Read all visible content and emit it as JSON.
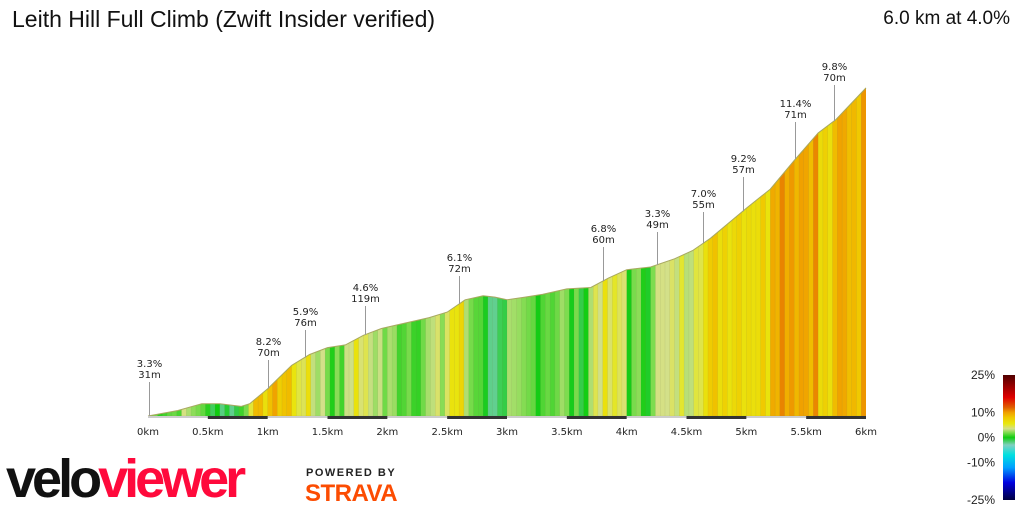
{
  "header": {
    "title": "Leith Hill Full Climb (Zwift Insider verified)",
    "summary": "6.0 km at 4.0%"
  },
  "branding": {
    "logo_part1": "velo",
    "logo_part2": "viewer",
    "powered_by": "POWERED BY",
    "strava": "STRAVA",
    "logo_colors": {
      "velo": "#111111",
      "viewer": "#ff0a3c",
      "strava": "#fc4c02"
    }
  },
  "chart_data": {
    "type": "area",
    "xlabel": "",
    "ylabel": "",
    "xlim": [
      0,
      6
    ],
    "x_ticks": [
      "0km",
      "0.5km",
      "1km",
      "1.5km",
      "2km",
      "2.5km",
      "3km",
      "3.5km",
      "4km",
      "4.5km",
      "5km",
      "5.5km",
      "6km"
    ],
    "distance_km": [
      0,
      0.25,
      0.45,
      0.6,
      0.78,
      0.85,
      1.0,
      1.2,
      1.35,
      1.5,
      1.65,
      1.8,
      1.95,
      2.1,
      2.35,
      2.5,
      2.65,
      2.8,
      2.9,
      3.0,
      3.15,
      3.3,
      3.5,
      3.7,
      3.85,
      4.0,
      4.2,
      4.4,
      4.55,
      4.7,
      5.0,
      5.2,
      5.4,
      5.6,
      5.75,
      6.0
    ],
    "elevation_gain_m": [
      0,
      4,
      9,
      9,
      7,
      9,
      20,
      37,
      45,
      50,
      52,
      59,
      64,
      67,
      72,
      76,
      85,
      88,
      87,
      85,
      87,
      89,
      93,
      94,
      101,
      107,
      109,
      115,
      121,
      130,
      152,
      166,
      187,
      207,
      217,
      240
    ],
    "annotations": [
      {
        "km": 0.01,
        "grade": "3.3%",
        "length": "31m"
      },
      {
        "km": 1.0,
        "grade": "8.2%",
        "length": "70m"
      },
      {
        "km": 1.31,
        "grade": "5.9%",
        "length": "76m"
      },
      {
        "km": 1.81,
        "grade": "4.6%",
        "length": "119m"
      },
      {
        "km": 2.6,
        "grade": "6.1%",
        "length": "72m"
      },
      {
        "km": 3.8,
        "grade": "6.8%",
        "length": "60m"
      },
      {
        "km": 4.25,
        "grade": "3.3%",
        "length": "49m"
      },
      {
        "km": 4.64,
        "grade": "7.0%",
        "length": "55m"
      },
      {
        "km": 4.97,
        "grade": "9.2%",
        "length": "57m"
      },
      {
        "km": 5.41,
        "grade": "11.4%",
        "length": "71m"
      },
      {
        "km": 5.73,
        "grade": "9.8%",
        "length": "70m"
      }
    ],
    "legend": {
      "title": "",
      "labels": [
        "25%",
        "10%",
        "0%",
        "-10%",
        "-25%"
      ],
      "grade_values": [
        25,
        10,
        0,
        -10,
        -25
      ],
      "colors": [
        {
          "grade": -25,
          "color": "#000040"
        },
        {
          "grade": -18,
          "color": "#0000e0"
        },
        {
          "grade": -12,
          "color": "#00a0ff"
        },
        {
          "grade": -7,
          "color": "#00e0e0"
        },
        {
          "grade": -3,
          "color": "#80d0c0"
        },
        {
          "grade": 0,
          "color": "#10cc10"
        },
        {
          "grade": 2,
          "color": "#80dc50"
        },
        {
          "grade": 3.5,
          "color": "#d4e08a"
        },
        {
          "grade": 5.5,
          "color": "#e8e810"
        },
        {
          "grade": 8,
          "color": "#f0c800"
        },
        {
          "grade": 10,
          "color": "#f0a000"
        },
        {
          "grade": 12,
          "color": "#e06000"
        },
        {
          "grade": 16,
          "color": "#e00000"
        },
        {
          "grade": 25,
          "color": "#500000"
        }
      ],
      "placement": "bottom-right"
    }
  }
}
